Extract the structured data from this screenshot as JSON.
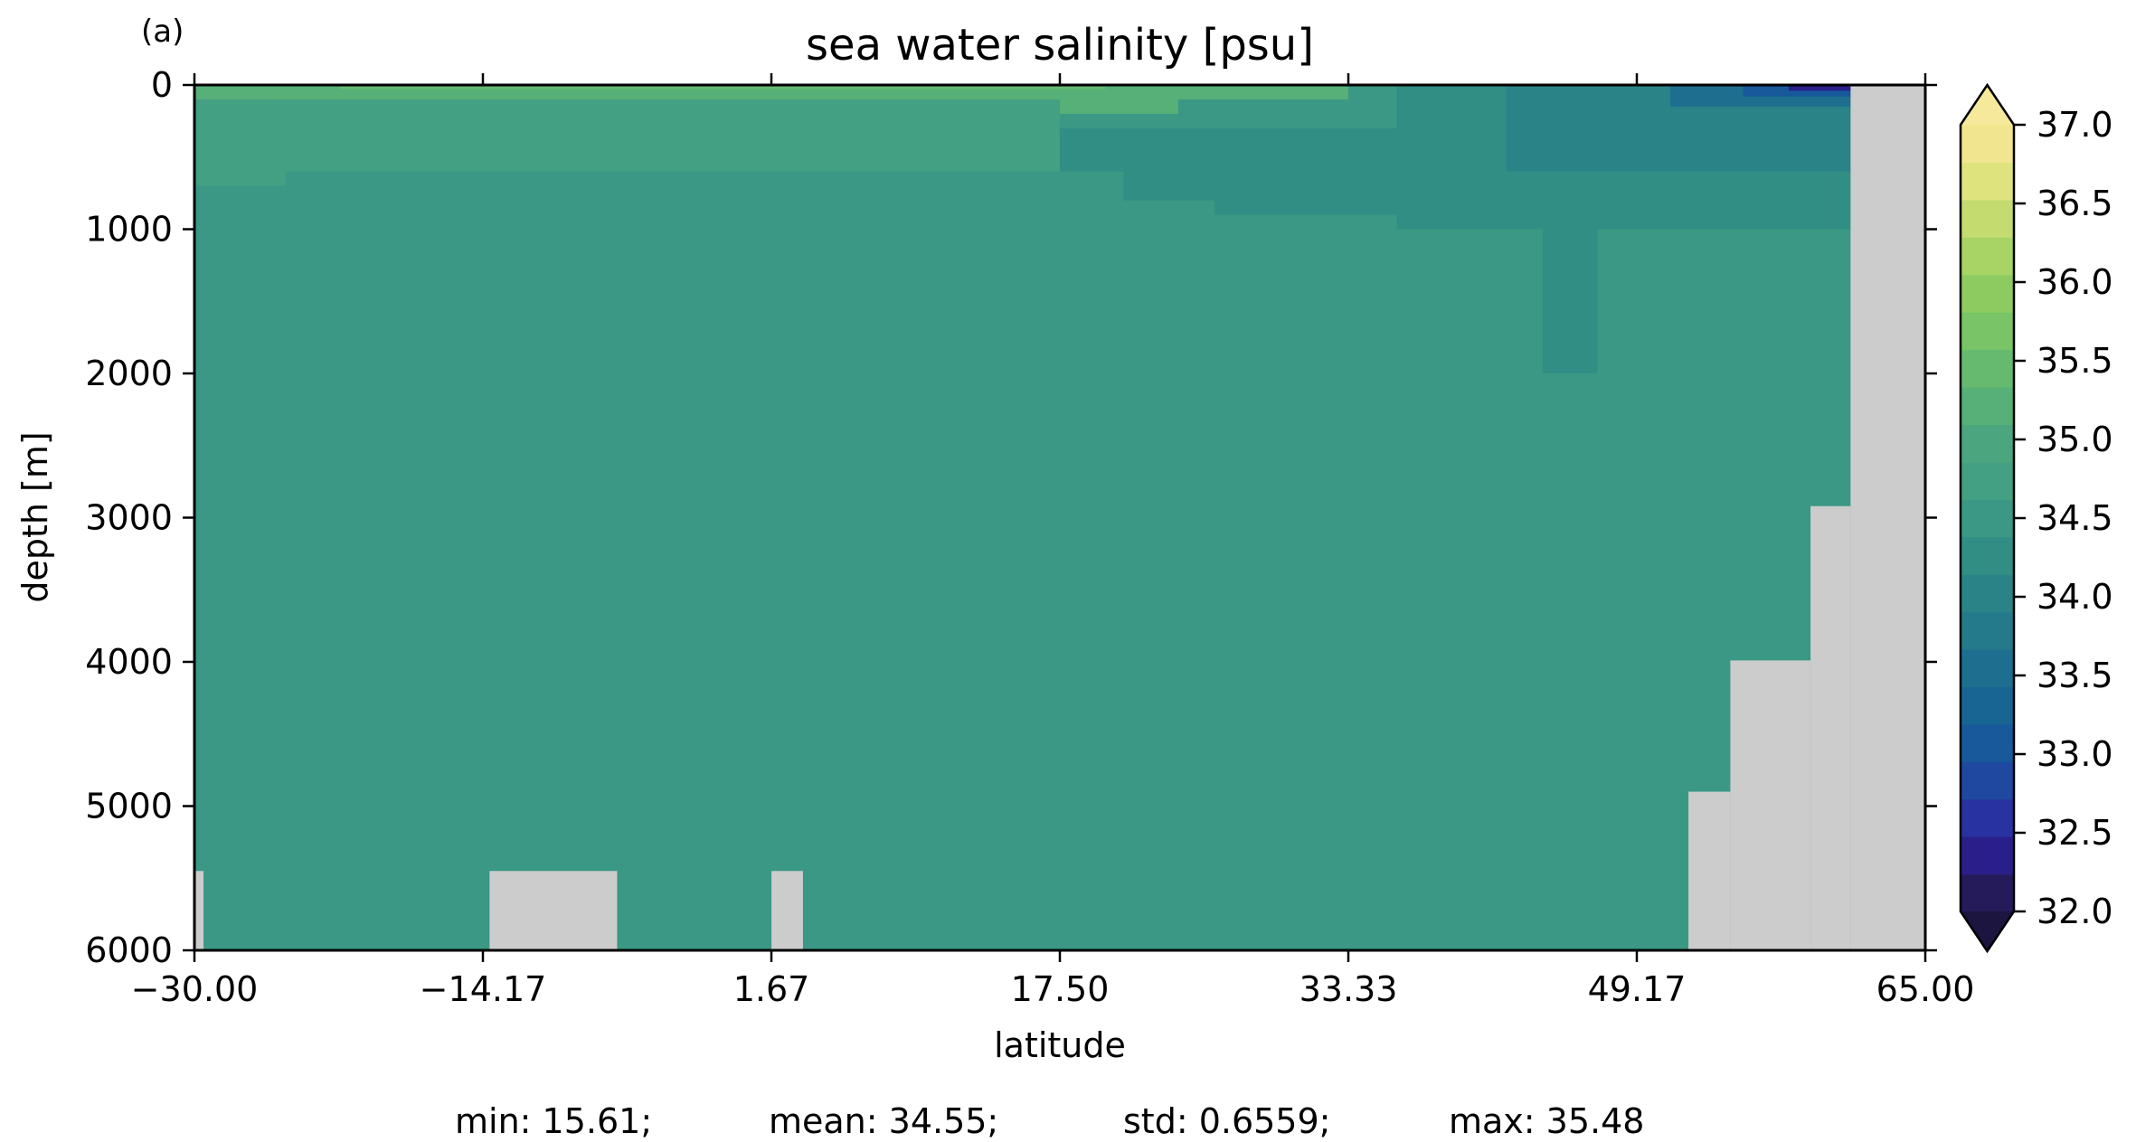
{
  "panel_label": "(a)",
  "chart_data": {
    "type": "heatmap",
    "title": "sea water salinity [psu]",
    "xlabel": "latitude",
    "ylabel": "depth [m]",
    "xlim": [
      -30.0,
      65.0
    ],
    "ylim": [
      6000,
      0
    ],
    "y_inverted": true,
    "x_ticks": [
      "−30.00",
      "−14.17",
      "1.67",
      "17.50",
      "33.33",
      "49.17",
      "65.00"
    ],
    "y_ticks": [
      "0",
      "1000",
      "2000",
      "3000",
      "4000",
      "5000",
      "6000"
    ],
    "colorbar": {
      "min": 32.0,
      "max": 37.0,
      "step": 0.25,
      "extend": "both",
      "ticks": [
        "32.0",
        "32.5",
        "33.0",
        "33.5",
        "34.0",
        "34.5",
        "35.0",
        "35.5",
        "36.0",
        "36.5",
        "37.0"
      ],
      "colors": [
        "#251a5a",
        "#2a1f8a",
        "#2832a0",
        "#1f48a0",
        "#17599a",
        "#186594",
        "#1e6e8f",
        "#247a8a",
        "#2a8487",
        "#318e85",
        "#3a9884",
        "#43a083",
        "#4ba67f",
        "#56b077",
        "#66ba70",
        "#78c466",
        "#8dcb61",
        "#a8d365",
        "#c3db6f",
        "#dee37e",
        "#f1e58f"
      ],
      "under_color": "#1b1540",
      "over_color": "#f6e99c"
    },
    "background_salinity": 34.5,
    "land_mask_color": "#cccccc",
    "field_blocks": [
      {
        "lat": [
          -30.0,
          33.33
        ],
        "depth": [
          0,
          100
        ],
        "salinity": 35.2
      },
      {
        "lat": [
          -22.0,
          20.0
        ],
        "depth": [
          0,
          30
        ],
        "salinity": 35.4
      },
      {
        "lat": [
          -26.0,
          24.0
        ],
        "depth": [
          30,
          200
        ],
        "salinity": 35.1
      },
      {
        "lat": [
          -30.0,
          17.5
        ],
        "depth": [
          100,
          600
        ],
        "salinity": 34.8
      },
      {
        "lat": [
          -30.0,
          -25.0
        ],
        "depth": [
          600,
          700
        ],
        "salinity": 34.8
      },
      {
        "lat": [
          17.5,
          49.17
        ],
        "depth": [
          300,
          600
        ],
        "salinity": 34.25
      },
      {
        "lat": [
          21.0,
          49.17
        ],
        "depth": [
          600,
          800
        ],
        "salinity": 34.25
      },
      {
        "lat": [
          26.0,
          62.0
        ],
        "depth": [
          800,
          900
        ],
        "salinity": 34.25
      },
      {
        "lat": [
          36.0,
          62.0
        ],
        "depth": [
          0,
          1000
        ],
        "salinity": 34.25
      },
      {
        "lat": [
          42.0,
          62.0
        ],
        "depth": [
          0,
          600
        ],
        "salinity": 34.0
      },
      {
        "lat": [
          44.0,
          47.0
        ],
        "depth": [
          1000,
          2000
        ],
        "salinity": 34.3
      },
      {
        "lat": [
          51.0,
          62.0
        ],
        "depth": [
          0,
          150
        ],
        "salinity": 33.6
      },
      {
        "lat": [
          55.0,
          62.0
        ],
        "depth": [
          0,
          80
        ],
        "salinity": 33.1
      },
      {
        "lat": [
          57.5,
          61.5
        ],
        "depth": [
          0,
          40
        ],
        "salinity": 32.3
      }
    ],
    "land_blocks": [
      {
        "lat": [
          -30.0,
          -29.5
        ],
        "depth": [
          5450,
          6000
        ]
      },
      {
        "lat": [
          -13.8,
          -6.8
        ],
        "depth": [
          5450,
          6000
        ]
      },
      {
        "lat": [
          1.67,
          3.4
        ],
        "depth": [
          5450,
          6000
        ]
      },
      {
        "lat": [
          52.0,
          54.3
        ],
        "depth": [
          4900,
          6000
        ]
      },
      {
        "lat": [
          54.3,
          58.7
        ],
        "depth": [
          3990,
          6000
        ]
      },
      {
        "lat": [
          58.7,
          60.9
        ],
        "depth": [
          2920,
          6000
        ]
      },
      {
        "lat": [
          60.9,
          65.0
        ],
        "depth": [
          0,
          6000
        ]
      }
    ]
  },
  "stats": {
    "min": "min: 15.61;",
    "mean": "mean: 34.55;",
    "std": "std: 0.6559;",
    "max": "max: 35.48"
  }
}
